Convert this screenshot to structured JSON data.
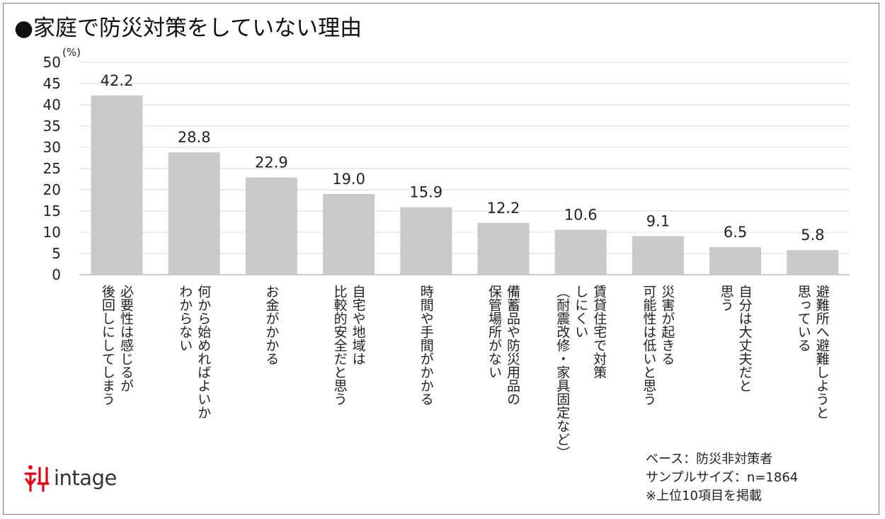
{
  "title": "●家庭で防災対策をしていない理由",
  "brand": {
    "name": "intage",
    "color": "#e60012"
  },
  "notes": [
    "ベース：防災非対策者",
    "サンプルサイズ：n=1864",
    "※上位10項目を掲載"
  ],
  "chart_data": {
    "type": "bar",
    "unit_label": "(%)",
    "ylim": [
      0,
      50
    ],
    "yticks": [
      0,
      5,
      10,
      15,
      20,
      25,
      30,
      35,
      40,
      45,
      50
    ],
    "grid": true,
    "bar_color": "#c8c9ca",
    "categories": [
      [
        "必要性は感じるが",
        "後回しにしてしまう"
      ],
      [
        "何から始めればよいか",
        "わからない"
      ],
      [
        "お金がかかる"
      ],
      [
        "自宅や地域は",
        "比較的安全だと思う"
      ],
      [
        "時間や手間がかかる"
      ],
      [
        "備蓄品や防災用品の",
        "保管場所がない"
      ],
      [
        "賃貸住宅で対策",
        "しにくい",
        "（耐震改修・家具固定など）"
      ],
      [
        "災害が起きる",
        "可能性は低いと思う"
      ],
      [
        "自分は大丈夫だと",
        "思う"
      ],
      [
        "避難所へ避難しようと",
        "思っている"
      ]
    ],
    "values": [
      42.2,
      28.8,
      22.9,
      19.0,
      15.9,
      12.2,
      10.6,
      9.1,
      6.5,
      5.8
    ],
    "value_labels": [
      "42.2",
      "28.8",
      "22.9",
      "19.0",
      "15.9",
      "12.2",
      "10.6",
      "9.1",
      "6.5",
      "5.8"
    ]
  }
}
